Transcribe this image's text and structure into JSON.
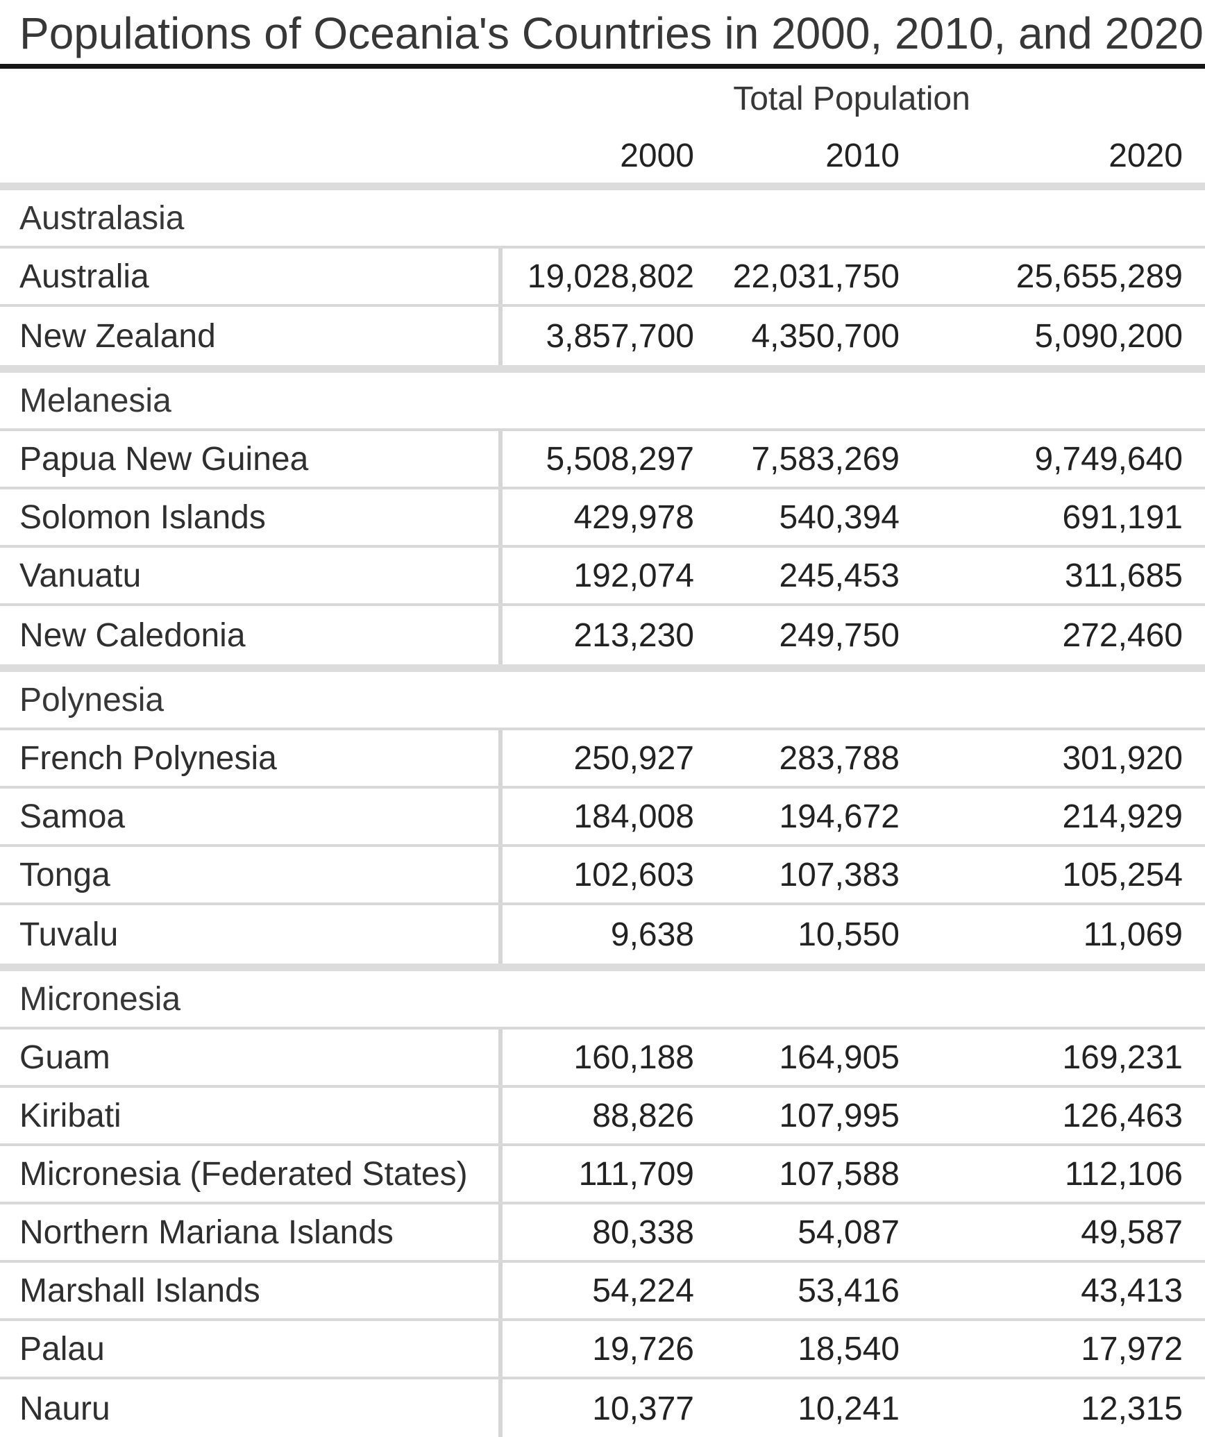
{
  "title": "Populations of Oceania's Countries in 2000, 2010, and 2020",
  "table": {
    "column_group_label": "Total Population",
    "years": [
      "2000",
      "2010",
      "2020"
    ],
    "sections": [
      {
        "region": "Australasia",
        "rows": [
          {
            "country": "Australia",
            "values": [
              "19,028,802",
              "22,031,750",
              "25,655,289"
            ]
          },
          {
            "country": "New Zealand",
            "values": [
              "3,857,700",
              "4,350,700",
              "5,090,200"
            ]
          }
        ]
      },
      {
        "region": "Melanesia",
        "rows": [
          {
            "country": "Papua New Guinea",
            "values": [
              "5,508,297",
              "7,583,269",
              "9,749,640"
            ]
          },
          {
            "country": "Solomon Islands",
            "values": [
              "429,978",
              "540,394",
              "691,191"
            ]
          },
          {
            "country": "Vanuatu",
            "values": [
              "192,074",
              "245,453",
              "311,685"
            ]
          },
          {
            "country": "New Caledonia",
            "values": [
              "213,230",
              "249,750",
              "272,460"
            ]
          }
        ]
      },
      {
        "region": "Polynesia",
        "rows": [
          {
            "country": "French Polynesia",
            "values": [
              "250,927",
              "283,788",
              "301,920"
            ]
          },
          {
            "country": "Samoa",
            "values": [
              "184,008",
              "194,672",
              "214,929"
            ]
          },
          {
            "country": "Tonga",
            "values": [
              "102,603",
              "107,383",
              "105,254"
            ]
          },
          {
            "country": "Tuvalu",
            "values": [
              "9,638",
              "10,550",
              "11,069"
            ]
          }
        ]
      },
      {
        "region": "Micronesia",
        "rows": [
          {
            "country": "Guam",
            "values": [
              "160,188",
              "164,905",
              "169,231"
            ]
          },
          {
            "country": "Kiribati",
            "values": [
              "88,826",
              "107,995",
              "126,463"
            ]
          },
          {
            "country": "Micronesia (Federated States)",
            "values": [
              "111,709",
              "107,588",
              "112,106"
            ]
          },
          {
            "country": "Northern Mariana Islands",
            "values": [
              "80,338",
              "54,087",
              "49,587"
            ]
          },
          {
            "country": "Marshall Islands",
            "values": [
              "54,224",
              "53,416",
              "43,413"
            ]
          },
          {
            "country": "Palau",
            "values": [
              "19,726",
              "18,540",
              "17,972"
            ]
          },
          {
            "country": "Nauru",
            "values": [
              "10,377",
              "10,241",
              "12,315"
            ]
          }
        ]
      }
    ]
  },
  "chart_data": {
    "type": "table",
    "title": "Populations of Oceania's Countries in 2000, 2010, and 2020",
    "column_group": "Total Population",
    "columns": [
      "2000",
      "2010",
      "2020"
    ],
    "sections": [
      {
        "region": "Australasia",
        "rows": [
          {
            "country": "Australia",
            "values": [
              19028802,
              22031750,
              25655289
            ]
          },
          {
            "country": "New Zealand",
            "values": [
              3857700,
              4350700,
              5090200
            ]
          }
        ]
      },
      {
        "region": "Melanesia",
        "rows": [
          {
            "country": "Papua New Guinea",
            "values": [
              5508297,
              7583269,
              9749640
            ]
          },
          {
            "country": "Solomon Islands",
            "values": [
              429978,
              540394,
              691191
            ]
          },
          {
            "country": "Vanuatu",
            "values": [
              192074,
              245453,
              311685
            ]
          },
          {
            "country": "New Caledonia",
            "values": [
              213230,
              249750,
              272460
            ]
          }
        ]
      },
      {
        "region": "Polynesia",
        "rows": [
          {
            "country": "French Polynesia",
            "values": [
              250927,
              283788,
              301920
            ]
          },
          {
            "country": "Samoa",
            "values": [
              184008,
              194672,
              214929
            ]
          },
          {
            "country": "Tonga",
            "values": [
              102603,
              107383,
              105254
            ]
          },
          {
            "country": "Tuvalu",
            "values": [
              9638,
              10550,
              11069
            ]
          }
        ]
      },
      {
        "region": "Micronesia",
        "rows": [
          {
            "country": "Guam",
            "values": [
              160188,
              164905,
              169231
            ]
          },
          {
            "country": "Kiribati",
            "values": [
              88826,
              107995,
              126463
            ]
          },
          {
            "country": "Micronesia (Federated States)",
            "values": [
              111709,
              107588,
              112106
            ]
          },
          {
            "country": "Northern Mariana Islands",
            "values": [
              80338,
              54087,
              49587
            ]
          },
          {
            "country": "Marshall Islands",
            "values": [
              54224,
              53416,
              43413
            ]
          },
          {
            "country": "Palau",
            "values": [
              19726,
              18540,
              17972
            ]
          },
          {
            "country": "Nauru",
            "values": [
              10377,
              10241,
              12315
            ]
          }
        ]
      }
    ]
  },
  "colors": {
    "title_rule": "#161616",
    "thin_line": "#d8d8d8",
    "section_band": "#dcdcdc",
    "column_divider": "#d6d6d6",
    "text": "#2f2f2f",
    "background": "#ffffff"
  }
}
